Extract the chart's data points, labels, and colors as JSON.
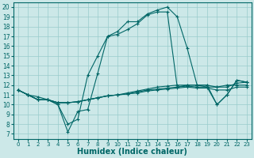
{
  "bg_color": "#cce8e8",
  "grid_color": "#99cccc",
  "line_color": "#006666",
  "marker": "+",
  "marker_size": 3,
  "marker_lw": 0.8,
  "line_width": 0.8,
  "xlabel": "Humidex (Indice chaleur)",
  "xlabel_fontsize": 7,
  "xlim": [
    -0.5,
    23.5
  ],
  "ylim": [
    6.5,
    20.5
  ],
  "yticks": [
    7,
    8,
    9,
    10,
    11,
    12,
    13,
    14,
    15,
    16,
    17,
    18,
    19,
    20
  ],
  "xticks": [
    0,
    1,
    2,
    3,
    4,
    5,
    6,
    7,
    8,
    9,
    10,
    11,
    12,
    13,
    14,
    15,
    16,
    17,
    18,
    19,
    20,
    21,
    22,
    23
  ],
  "series": [
    [
      11.5,
      11.0,
      10.8,
      10.5,
      10.0,
      8.0,
      8.5,
      13.0,
      15.0,
      17.0,
      17.5,
      18.5,
      18.5,
      19.3,
      19.7,
      20.0,
      19.0,
      15.8,
      12.0,
      11.8,
      10.0,
      11.0,
      12.5,
      12.3
    ],
    [
      11.5,
      11.0,
      10.5,
      10.5,
      10.0,
      7.2,
      9.3,
      9.5,
      13.2,
      17.0,
      17.2,
      17.7,
      18.3,
      19.2,
      19.5,
      19.5,
      11.8,
      12.0,
      12.0,
      12.0,
      10.0,
      11.0,
      12.5,
      12.3
    ],
    [
      11.5,
      11.0,
      10.5,
      10.5,
      10.2,
      10.2,
      10.3,
      10.5,
      10.7,
      10.9,
      11.0,
      11.2,
      11.4,
      11.6,
      11.8,
      11.9,
      12.0,
      12.0,
      12.0,
      12.0,
      11.8,
      11.8,
      12.2,
      12.3
    ],
    [
      11.5,
      11.0,
      10.5,
      10.5,
      10.2,
      10.2,
      10.3,
      10.5,
      10.7,
      10.9,
      11.0,
      11.1,
      11.3,
      11.5,
      11.6,
      11.7,
      11.8,
      11.9,
      11.8,
      11.8,
      11.8,
      12.0,
      12.0,
      12.0
    ],
    [
      11.5,
      11.0,
      10.5,
      10.5,
      10.2,
      10.2,
      10.3,
      10.5,
      10.7,
      10.9,
      11.0,
      11.1,
      11.2,
      11.4,
      11.5,
      11.6,
      11.7,
      11.8,
      11.7,
      11.7,
      11.5,
      11.5,
      11.8,
      11.8
    ]
  ]
}
